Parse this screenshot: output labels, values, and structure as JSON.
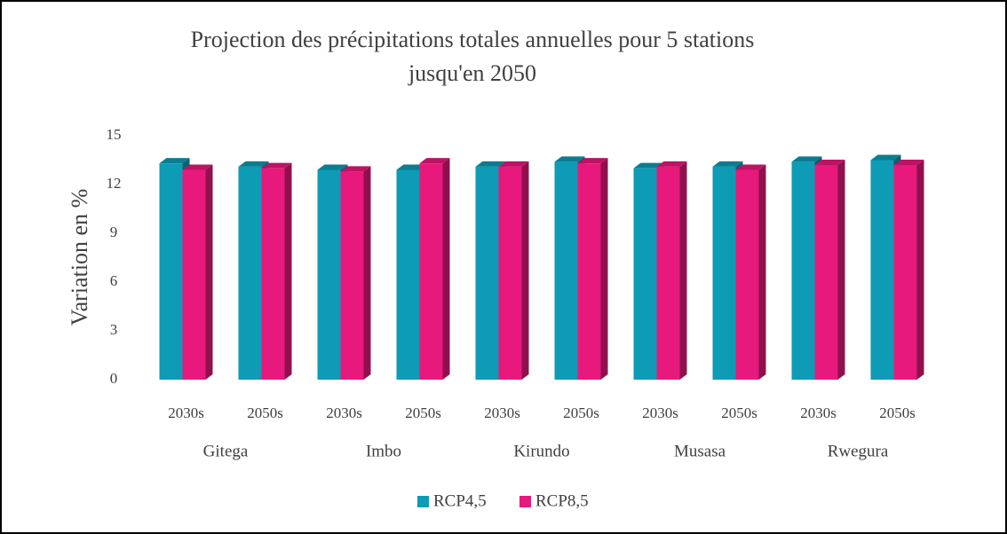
{
  "chart_data": {
    "type": "bar",
    "title": "Projection des précipitations totales annuelles pour 5 stations jusqu'en 2050",
    "y_label": "Variation en %",
    "categories": [
      "2030s",
      "2050s",
      "2030s",
      "2050s",
      "2030s",
      "2050s",
      "2030s",
      "2050s",
      "2030s",
      "2050s"
    ],
    "groups": [
      "Gitega",
      "Imbo",
      "Kirundo",
      "Musasa",
      "Rwegura"
    ],
    "series": [
      {
        "name": "RCP4,5",
        "color": "#0e9bb5",
        "values": [
          13.3,
          13.1,
          12.9,
          12.9,
          13.1,
          13.4,
          13.0,
          13.1,
          13.4,
          13.5
        ]
      },
      {
        "name": "RCP8,5",
        "color": "#e8197c",
        "values": [
          12.9,
          13.0,
          12.8,
          13.3,
          13.1,
          13.3,
          13.1,
          12.9,
          13.2,
          13.2
        ]
      }
    ],
    "ylim": [
      0,
      15
    ],
    "yticks": [
      0,
      3,
      6,
      9,
      12,
      15
    ],
    "grid": false,
    "legend": "bottom"
  }
}
